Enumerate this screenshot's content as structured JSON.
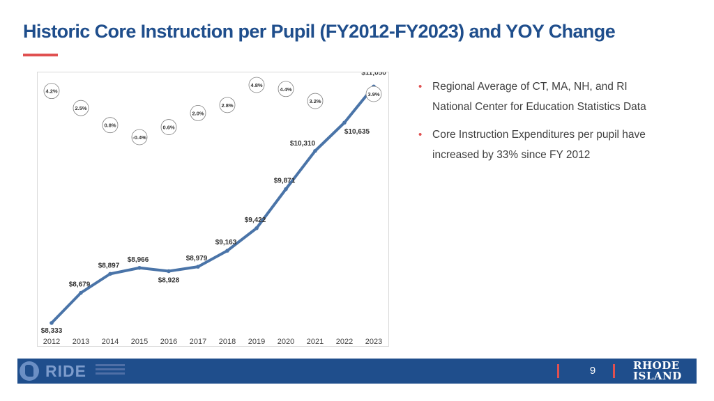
{
  "title": "Historic Core Instruction per Pupil (FY2012-FY2023) and YOY Change",
  "bullets": [
    "Regional Average of CT, MA, NH, and RI National Center for Education Statistics Data",
    "Core Instruction Expenditures per pupil have increased by 33% since FY 2012"
  ],
  "footer": {
    "logo_text": "RIDE",
    "page_number": "9",
    "state_logo_line1": "RHODE",
    "state_logo_line2": "ISLAND"
  },
  "colors": {
    "title": "#1f4e8c",
    "accent_rule": "#e05050",
    "line": "#4a74a8",
    "footer": "#1f4e8c"
  },
  "chart_data": {
    "type": "line",
    "categories": [
      "2012",
      "2013",
      "2014",
      "2015",
      "2016",
      "2017",
      "2018",
      "2019",
      "2020",
      "2021",
      "2022",
      "2023"
    ],
    "series": [
      {
        "values": [
          8333,
          8679,
          8897,
          8966,
          8928,
          8979,
          9163,
          9422,
          9871,
          10310,
          10635,
          11050
        ],
        "labels": [
          "$8,333",
          "$8,679",
          "$8,897",
          "$8,966",
          "$8,928",
          "$8,979",
          "$9,163",
          "$9,422",
          "$9,871",
          "$10,310",
          "$10,635",
          "$11,050"
        ]
      }
    ],
    "yoy_change": [
      4.2,
      2.5,
      0.8,
      -0.4,
      0.6,
      2.0,
      2.8,
      4.8,
      4.4,
      3.2,
      3.9
    ],
    "yoy_labels": [
      "4.2%",
      "2.5%",
      "0.8%",
      "-0.4%",
      "0.6%",
      "2.0%",
      "2.8%",
      "4.8%",
      "4.4%",
      "3.2%",
      "3.9%"
    ],
    "yoy_categories": [
      "2013",
      "2014",
      "2015",
      "2016",
      "2017",
      "2018",
      "2019",
      "2020",
      "2021",
      "2022",
      "2023"
    ],
    "ylim": [
      8300,
      11100
    ],
    "yoy_range": [
      -0.4,
      4.8
    ],
    "grid": false,
    "legend": "none",
    "title": "",
    "xlabel": "",
    "ylabel": ""
  }
}
